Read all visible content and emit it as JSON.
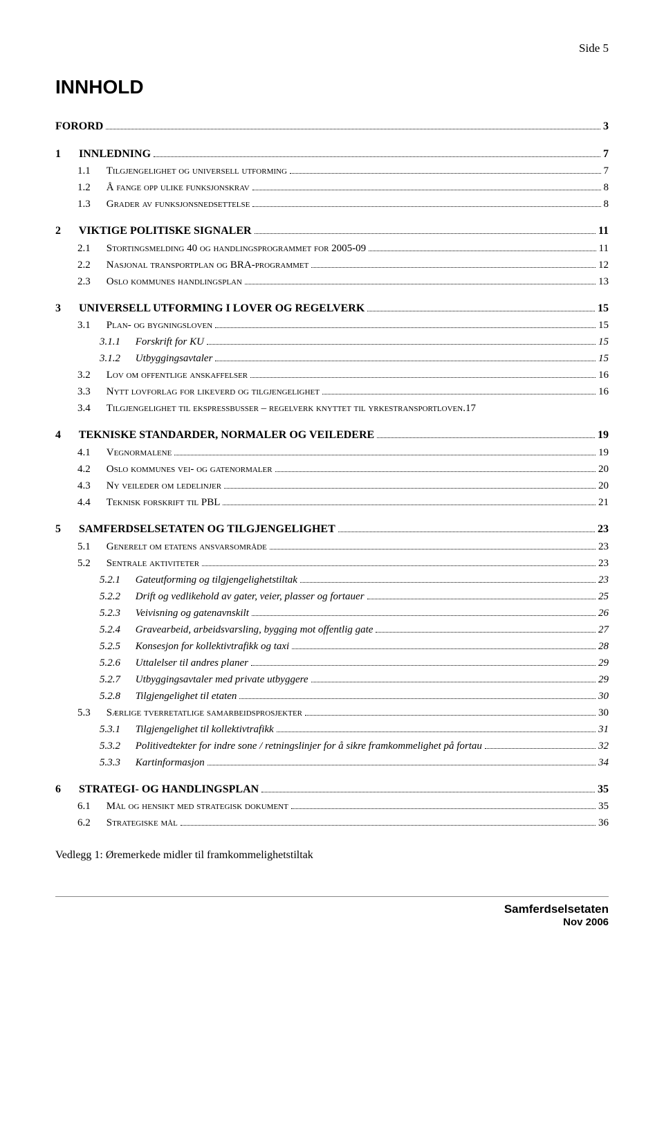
{
  "page_label": "Side 5",
  "main_title": "INNHOLD",
  "appendix": "Vedlegg 1: Øremerkede midler til framkommelighetstiltak",
  "footer": {
    "org": "Samferdselsetaten",
    "date": "Nov 2006"
  },
  "toc": [
    {
      "level": 1,
      "num": "",
      "title": "FORORD",
      "page": "3",
      "first": true
    },
    {
      "level": 1,
      "num": "1",
      "title": "INNLEDNING",
      "page": "7"
    },
    {
      "level": 2,
      "num": "1.1",
      "title_sc": "Tilgjengelighet og universell utforming",
      "page": "7"
    },
    {
      "level": 2,
      "num": "1.2",
      "title_sc": "Å fange opp ulike funksjonskrav",
      "page": "8"
    },
    {
      "level": 2,
      "num": "1.3",
      "title_sc": "Grader av funksjonsnedsettelse",
      "page": "8"
    },
    {
      "level": 1,
      "num": "2",
      "title": "VIKTIGE POLITISKE SIGNALER",
      "page": "11"
    },
    {
      "level": 2,
      "num": "2.1",
      "title_sc": "Stortingsmelding 40 og handlingsprogrammet for 2005-09",
      "page": "11"
    },
    {
      "level": 2,
      "num": "2.2",
      "title_sc": "Nasjonal transportplan og BRA-programmet",
      "page": "12"
    },
    {
      "level": 2,
      "num": "2.3",
      "title_sc": "Oslo kommunes handlingsplan",
      "page": "13"
    },
    {
      "level": 1,
      "num": "3",
      "title": "UNIVERSELL UTFORMING I LOVER OG REGELVERK",
      "page": "15"
    },
    {
      "level": 2,
      "num": "3.1",
      "title_sc": "Plan- og bygningsloven",
      "page": "15"
    },
    {
      "level": 3,
      "num": "3.1.1",
      "title": "Forskrift for KU",
      "page": "15"
    },
    {
      "level": 3,
      "num": "3.1.2",
      "title": "Utbyggingsavtaler",
      "page": "15"
    },
    {
      "level": 2,
      "num": "3.2",
      "title_sc": "Lov om offentlige anskaffelser",
      "page": "16"
    },
    {
      "level": 2,
      "num": "3.3",
      "title_sc": "Nytt lovforlag for likeverd og tilgjengelighet",
      "page": "16"
    },
    {
      "level": 2,
      "num": "3.4",
      "title_sc": "Tilgjengelighet til ekspressbusser – regelverk knyttet til yrkestransportloven",
      "suffix": ".",
      "page": "17",
      "nodots": true
    },
    {
      "level": 1,
      "num": "4",
      "title": "TEKNISKE STANDARDER, NORMALER OG VEILEDERE",
      "page": "19"
    },
    {
      "level": 2,
      "num": "4.1",
      "title_sc": "Vegnormalene",
      "page": "19"
    },
    {
      "level": 2,
      "num": "4.2",
      "title_sc": "Oslo kommunes vei- og gatenormaler",
      "page": "20"
    },
    {
      "level": 2,
      "num": "4.3",
      "title_sc": "Ny veileder om ledelinjer",
      "page": "20"
    },
    {
      "level": 2,
      "num": "4.4",
      "title_sc": "Teknisk forskrift til PBL",
      "page": "21"
    },
    {
      "level": 1,
      "num": "5",
      "title": "SAMFERDSELSETATEN OG TILGJENGELIGHET",
      "page": "23"
    },
    {
      "level": 2,
      "num": "5.1",
      "title_sc": "Generelt om etatens ansvarsområde",
      "page": "23"
    },
    {
      "level": 2,
      "num": "5.2",
      "title_sc": "Sentrale aktiviteter",
      "page": "23"
    },
    {
      "level": 3,
      "num": "5.2.1",
      "title": "Gateutforming og tilgjengelighetstiltak",
      "page": "23"
    },
    {
      "level": 3,
      "num": "5.2.2",
      "title": "Drift og vedlikehold av gater, veier, plasser og fortauer",
      "page": "25"
    },
    {
      "level": 3,
      "num": "5.2.3",
      "title": "Veivisning og gatenavnskilt",
      "page": "26"
    },
    {
      "level": 3,
      "num": "5.2.4",
      "title": "Gravearbeid, arbeidsvarsling, bygging mot offentlig gate",
      "page": "27"
    },
    {
      "level": 3,
      "num": "5.2.5",
      "title": "Konsesjon for kollektivtrafikk og taxi",
      "page": "28"
    },
    {
      "level": 3,
      "num": "5.2.6",
      "title": "Uttalelser til andres planer",
      "page": "29"
    },
    {
      "level": 3,
      "num": "5.2.7",
      "title": "Utbyggingsavtaler med private utbyggere",
      "page": "29"
    },
    {
      "level": 3,
      "num": "5.2.8",
      "title": "Tilgjengelighet til etaten",
      "page": "30"
    },
    {
      "level": 2,
      "num": "5.3",
      "title_sc": "Særlige tverretatlige samarbeidsprosjekter",
      "page": "30"
    },
    {
      "level": 3,
      "num": "5.3.1",
      "title": "Tilgjengelighet til kollektivtrafikk",
      "page": "31"
    },
    {
      "level": 3,
      "num": "5.3.2",
      "title": "Politivedtekter for indre sone / retningslinjer for å sikre framkommelighet på fortau",
      "page": "32"
    },
    {
      "level": 3,
      "num": "5.3.3",
      "title": "Kartinformasjon",
      "page": "34"
    },
    {
      "level": 1,
      "num": "6",
      "title": "STRATEGI- OG HANDLINGSPLAN",
      "page": "35"
    },
    {
      "level": 2,
      "num": "6.1",
      "title_sc": "Mål og hensikt med strategisk dokument",
      "page": "35"
    },
    {
      "level": 2,
      "num": "6.2",
      "title_sc": "Strategiske mål",
      "page": "36"
    }
  ]
}
